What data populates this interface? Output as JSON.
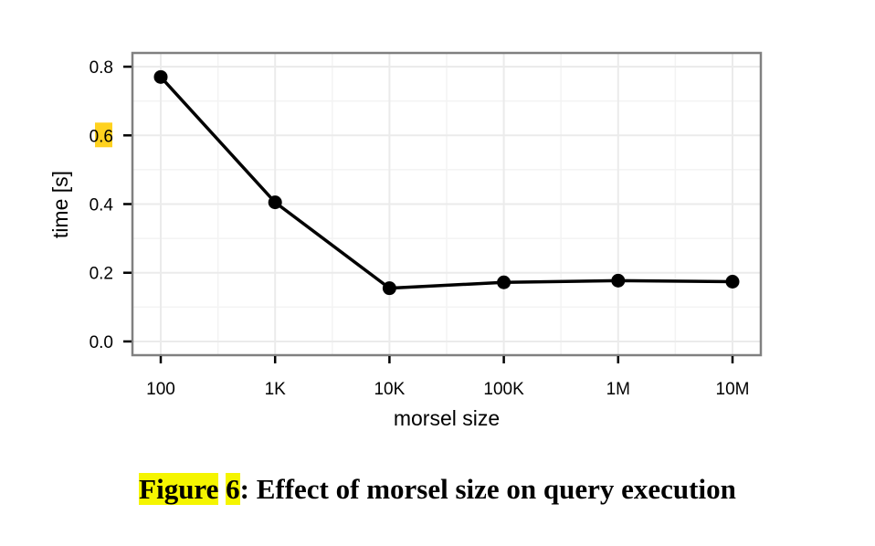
{
  "chart_data": {
    "type": "line",
    "x_categories": [
      "100",
      "1K",
      "10K",
      "100K",
      "1M",
      "10M"
    ],
    "series": [
      {
        "values": [
          0.77,
          0.405,
          0.155,
          0.172,
          0.177,
          0.174
        ]
      }
    ],
    "y_ticks": [
      "0.0",
      "0.2",
      "0.4",
      "0.6",
      "0.8"
    ],
    "ylim": [
      -0.04,
      0.84
    ],
    "xlabel": "morsel size",
    "ylabel": "time [s]",
    "grid": true,
    "highlighted_tick": "0.6",
    "highlight_color": "#ffd21f",
    "line_color": "#000000",
    "panel_border_color": "#808080",
    "grid_color": "#ebebeb"
  },
  "caption": {
    "figure_word": "Figure",
    "figure_number": "6",
    "text": ": Effect of morsel size on query execution",
    "highlight_color": "#f5f500"
  }
}
